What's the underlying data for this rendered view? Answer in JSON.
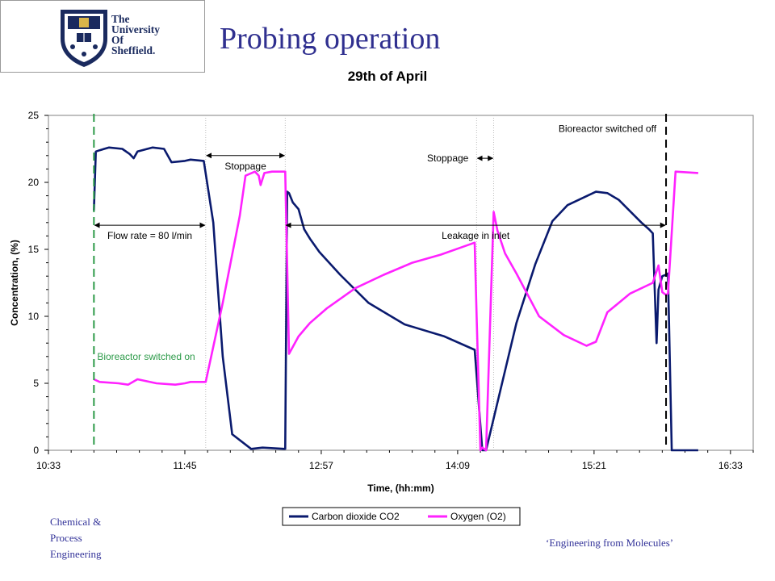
{
  "header": {
    "logo_lines": [
      "The",
      "University",
      "Of",
      "Sheffield."
    ],
    "slide_title": "Probing operation"
  },
  "footer": {
    "left_lines": [
      "Chemical &",
      "Process",
      "Engineering"
    ],
    "right_text": "‘Engineering from Molecules’"
  },
  "colors": {
    "co2": "#0a1a6e",
    "o2": "#ff22ff",
    "start_marker": "#2e9b4a",
    "logo_navy": "#1a2a5e",
    "title": "#2f2f8f"
  },
  "chart_data": {
    "type": "line",
    "title": "29th of April",
    "xlabel": "Time, (hh:mm)",
    "ylabel": "Concentration, (%)",
    "xlim": [
      "10:33",
      "16:45"
    ],
    "ylim": [
      0,
      25
    ],
    "yticks": [
      0,
      5,
      10,
      15,
      20,
      25
    ],
    "xtick_labels": [
      "10:33",
      "11:45",
      "12:57",
      "14:09",
      "15:21",
      "16:33"
    ],
    "legend_position": "bottom",
    "series": [
      {
        "name": "Carbon dioxide CO2",
        "x": [
          "10:57",
          "10:58",
          "11:00",
          "11:05",
          "11:12",
          "11:16",
          "11:18",
          "11:20",
          "11:28",
          "11:34",
          "11:38",
          "11:45",
          "11:48",
          "11:55",
          "12:00",
          "12:03",
          "12:05",
          "12:10",
          "12:20",
          "12:26",
          "12:38",
          "12:39",
          "12:40",
          "12:42",
          "12:45",
          "12:48",
          "12:51",
          "12:56",
          "13:07",
          "13:22",
          "13:41",
          "14:02",
          "14:18",
          "14:22",
          "14:24",
          "14:40",
          "14:50",
          "14:59",
          "15:07",
          "15:22",
          "15:28",
          "15:34",
          "15:46",
          "15:50",
          "15:52",
          "15:54",
          "15:55",
          "15:57",
          "15:59",
          "16:00",
          "16:02",
          "16:04",
          "16:16"
        ],
        "y": [
          17.9,
          22.3,
          22.4,
          22.6,
          22.5,
          22.1,
          21.8,
          22.3,
          22.6,
          22.5,
          21.5,
          21.6,
          21.7,
          21.6,
          17.0,
          11.0,
          7.0,
          1.2,
          0.1,
          0.2,
          0.1,
          19.3,
          19.2,
          18.5,
          18.0,
          16.5,
          15.8,
          14.8,
          13.1,
          11.0,
          9.4,
          8.5,
          7.5,
          0.0,
          0.0,
          9.5,
          13.9,
          17.1,
          18.3,
          19.3,
          19.2,
          18.7,
          17.0,
          16.5,
          16.2,
          8.0,
          12.0,
          13.0,
          13.1,
          13.2,
          0.0,
          0.0,
          0.0
        ]
      },
      {
        "name": "Oxygen (O2)",
        "x": [
          "10:57",
          "11:00",
          "11:10",
          "11:15",
          "11:20",
          "11:30",
          "11:40",
          "11:45",
          "11:48",
          "11:50",
          "11:56",
          "12:05",
          "12:14",
          "12:17",
          "12:22",
          "12:24",
          "12:25",
          "12:27",
          "12:31",
          "12:38",
          "12:40",
          "12:45",
          "12:51",
          "13:00",
          "13:15",
          "13:30",
          "13:45",
          "14:00",
          "14:10",
          "14:18",
          "14:19",
          "14:21",
          "14:22",
          "14:24",
          "14:28",
          "14:30",
          "14:34",
          "14:40",
          "14:52",
          "15:05",
          "15:17",
          "15:22",
          "15:28",
          "15:40",
          "15:52",
          "15:55",
          "15:57",
          "15:59",
          "16:00",
          "16:04",
          "16:16"
        ],
        "y": [
          5.3,
          5.1,
          5.0,
          4.9,
          5.3,
          5.0,
          4.9,
          5.0,
          5.1,
          5.1,
          5.1,
          11.0,
          17.5,
          20.5,
          20.8,
          20.5,
          19.8,
          20.7,
          20.8,
          20.8,
          7.2,
          8.5,
          9.5,
          10.6,
          12.1,
          13.1,
          14.0,
          14.6,
          15.1,
          15.5,
          10.0,
          0.0,
          0.2,
          0.0,
          17.8,
          16.4,
          14.7,
          13.2,
          10.0,
          8.6,
          7.8,
          8.1,
          10.3,
          11.7,
          12.5,
          13.8,
          11.8,
          11.6,
          11.7,
          20.8,
          20.7
        ]
      }
    ],
    "annotations": [
      {
        "text": "Flow rate = 80 l/min",
        "x_from": "10:57",
        "x_to": "11:56",
        "y": 16.8,
        "type": "double-arrow"
      },
      {
        "text": "Stoppage",
        "x_from": "11:56",
        "x_to": "12:38",
        "y": 22.0,
        "type": "double-arrow"
      },
      {
        "text": "Leakage in inlet",
        "x_from": "12:38",
        "x_to": "15:59",
        "y": 16.8,
        "type": "double-arrow"
      },
      {
        "text": "Stoppage",
        "x_from": "14:19",
        "x_to": "14:28",
        "y": 21.8,
        "type": "double-arrow"
      },
      {
        "text": "Bioreactor switched on",
        "x": "10:57",
        "y": 7.0,
        "type": "vertical-dashed-line"
      },
      {
        "text": "Bioreactor switched off",
        "x": "15:59",
        "y": 24.0,
        "type": "vertical-dashed-line"
      }
    ],
    "reference_lines_x": [
      "11:56",
      "12:38",
      "14:19",
      "14:28"
    ]
  }
}
